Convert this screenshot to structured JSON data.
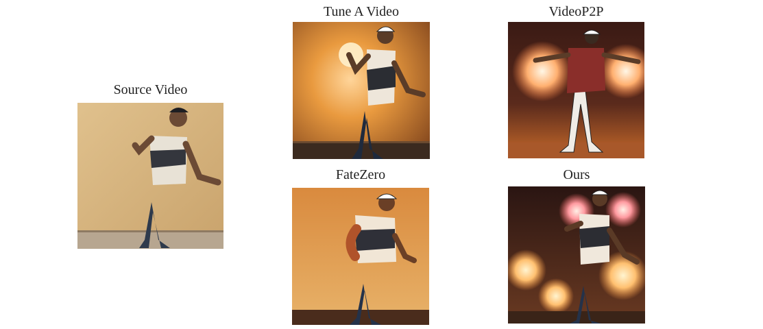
{
  "panels": {
    "source": {
      "caption": "Source Video",
      "image": "dancer-source-frame"
    },
    "tune": {
      "caption": "Tune A Video",
      "image": "dancer-sunset-frame"
    },
    "video_p2p": {
      "caption": "VideoP2P",
      "image": "dancer-fireworks-frame"
    },
    "fatezero": {
      "caption": "FateZero",
      "image": "dancer-illustrated-frame"
    },
    "ours": {
      "caption": "Ours",
      "image": "dancer-fireworks-night-frame"
    }
  },
  "colors": {
    "background": "#ffffff",
    "caption_text": "#222222"
  }
}
